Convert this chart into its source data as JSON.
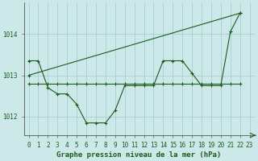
{
  "title": "Graphe pression niveau de la mer (hPa)",
  "bg_color": "#cce8e8",
  "line_color": "#1a5c1a",
  "grid_color": "#99cccc",
  "xlim": [
    -0.5,
    23.5
  ],
  "ylim": [
    1011.55,
    1014.75
  ],
  "yticks": [
    1012,
    1013,
    1014
  ],
  "xticks": [
    0,
    1,
    2,
    3,
    4,
    5,
    6,
    7,
    8,
    9,
    10,
    11,
    12,
    13,
    14,
    15,
    16,
    17,
    18,
    19,
    20,
    21,
    22,
    23
  ],
  "line1_x": [
    0,
    1,
    2,
    3,
    4,
    5,
    6,
    7,
    8,
    9,
    10,
    11,
    12,
    13,
    14,
    15,
    16,
    17,
    18,
    19,
    20,
    21,
    22
  ],
  "line1_y": [
    1013.35,
    1013.35,
    1012.7,
    1012.55,
    1012.55,
    1012.3,
    1011.85,
    1011.85,
    1011.85,
    1012.15,
    1012.75,
    1012.75,
    1012.75,
    1012.75,
    1013.35,
    1013.35,
    1013.35,
    1013.05,
    1012.75,
    1012.75,
    1012.75,
    1014.05,
    1014.5
  ],
  "line2_x": [
    0,
    1,
    2,
    3,
    4,
    5,
    6,
    7,
    8,
    9,
    10,
    11,
    12,
    13,
    14,
    15,
    16,
    17,
    18,
    19,
    20,
    21,
    22
  ],
  "line2_y": [
    1012.8,
    1012.8,
    1012.8,
    1012.8,
    1012.8,
    1012.8,
    1012.8,
    1012.8,
    1012.8,
    1012.8,
    1012.8,
    1012.8,
    1012.8,
    1012.8,
    1012.8,
    1012.8,
    1012.8,
    1012.8,
    1012.8,
    1012.8,
    1012.8,
    1012.8,
    1012.8
  ],
  "line3_x": [
    0,
    22
  ],
  "line3_y": [
    1013.0,
    1014.5
  ],
  "xlabel_fontsize": 6.5,
  "ylabel_fontsize": 6.5,
  "tick_fontsize": 5.5
}
